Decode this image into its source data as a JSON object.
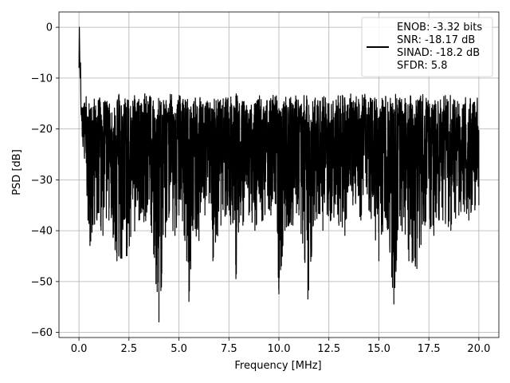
{
  "chart_data": {
    "type": "line",
    "title": "",
    "xlabel": "Frequency [MHz]",
    "ylabel": "PSD [dB]",
    "xlim": [
      -1,
      21
    ],
    "ylim": [
      -61,
      3
    ],
    "xticks": [
      0.0,
      2.5,
      5.0,
      7.5,
      10.0,
      12.5,
      15.0,
      17.5,
      20.0
    ],
    "xtick_labels": [
      "0.0",
      "2.5",
      "5.0",
      "7.5",
      "10.0",
      "12.5",
      "15.0",
      "17.5",
      "20.0"
    ],
    "yticks": [
      0,
      -10,
      -20,
      -30,
      -40,
      -50,
      -60
    ],
    "ytick_labels": [
      "0",
      "−10",
      "−20",
      "−30",
      "−40",
      "−50",
      "−60"
    ],
    "grid": true,
    "legend_position": "top-right",
    "series_color": "#000000",
    "series": [
      {
        "name": "",
        "legend_lines": [
          "ENOB: -3.32 bits",
          "SNR: -18.17 dB",
          "SINAD: -18.2 dB",
          "SFDR: 5.8"
        ],
        "points": [
          [
            0.0,
            -8.0
          ],
          [
            0.02,
            0.0
          ],
          [
            0.04,
            -6.0
          ],
          [
            0.07,
            -9.0
          ],
          [
            0.1,
            -18.0
          ],
          [
            0.2,
            -28.0
          ],
          [
            0.3,
            -33.0
          ],
          [
            0.45,
            -38.0
          ],
          [
            0.55,
            -43.0
          ],
          [
            0.9,
            -38.0
          ],
          [
            1.2,
            -41.0
          ],
          [
            1.5,
            -38.0
          ],
          [
            1.9,
            -46.0
          ],
          [
            2.4,
            -45.0
          ],
          [
            3.0,
            -38.0
          ],
          [
            3.6,
            -39.0
          ],
          [
            4.0,
            -58.0
          ],
          [
            4.4,
            -38.0
          ],
          [
            4.8,
            -41.0
          ],
          [
            5.0,
            -37.0
          ],
          [
            5.3,
            -42.0
          ],
          [
            5.5,
            -54.0
          ],
          [
            5.7,
            -40.0
          ],
          [
            6.0,
            -42.0
          ],
          [
            6.3,
            -37.0
          ],
          [
            6.7,
            -46.0
          ],
          [
            7.1,
            -39.0
          ],
          [
            7.5,
            -36.0
          ],
          [
            7.85,
            -49.5
          ],
          [
            8.2,
            -39.0
          ],
          [
            8.5,
            -37.0
          ],
          [
            8.8,
            -40.0
          ],
          [
            9.2,
            -38.0
          ],
          [
            9.6,
            -37.0
          ],
          [
            10.0,
            -52.5
          ],
          [
            10.3,
            -40.0
          ],
          [
            10.7,
            -39.0
          ],
          [
            11.0,
            -37.0
          ],
          [
            11.45,
            -53.5
          ],
          [
            11.8,
            -38.0
          ],
          [
            12.2,
            -40.0
          ],
          [
            12.6,
            -38.0
          ],
          [
            13.0,
            -39.0
          ],
          [
            13.3,
            -41.0
          ],
          [
            13.7,
            -35.0
          ],
          [
            14.1,
            -38.0
          ],
          [
            14.5,
            -36.0
          ],
          [
            15.0,
            -46.0
          ],
          [
            15.35,
            -37.0
          ],
          [
            15.75,
            -54.5
          ],
          [
            16.1,
            -39.0
          ],
          [
            16.5,
            -46.0
          ],
          [
            16.9,
            -47.5
          ],
          [
            17.3,
            -39.0
          ],
          [
            17.75,
            -41.0
          ],
          [
            18.2,
            -38.0
          ],
          [
            18.6,
            -40.0
          ],
          [
            19.0,
            -37.0
          ],
          [
            19.5,
            -38.0
          ],
          [
            19.8,
            -36.0
          ],
          [
            20.0,
            -35.0
          ]
        ]
      }
    ]
  }
}
